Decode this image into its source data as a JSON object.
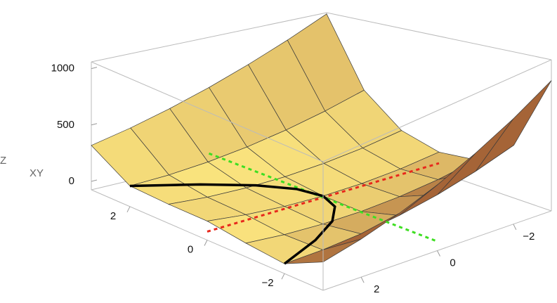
{
  "chart_data": {
    "type": "surface3d",
    "x": [
      -3,
      -2,
      -1,
      0,
      1,
      2,
      3
    ],
    "y": [
      -3,
      -2,
      -1,
      0,
      1,
      2,
      3
    ],
    "z": [
      [
        904,
        737,
        589,
        458,
        346,
        251,
        175
      ],
      [
        336,
        237,
        156,
        93,
        48,
        21,
        12
      ],
      [
        127,
        68,
        28,
        5,
        1,
        14,
        46
      ],
      [
        93,
        48,
        21,
        12,
        21,
        48,
        93
      ],
      [
        175,
        116,
        76,
        53,
        49,
        62,
        94
      ],
      [
        432,
        333,
        252,
        189,
        144,
        117,
        108
      ],
      [
        1048,
        881,
        733,
        602,
        490,
        395,
        319
      ]
    ],
    "xlim": [
      -3,
      3
    ],
    "ylim": [
      -3,
      3
    ],
    "zlim": [
      -75,
      1060
    ],
    "xticks": [
      {
        "value": -2,
        "label": "−2"
      },
      0,
      2
    ],
    "yticks": [
      {
        "value": -2,
        "label": "−2"
      },
      0,
      2
    ],
    "zticks": [
      0,
      500,
      1000
    ],
    "zlabel": "Z",
    "xylabel": "XY",
    "curve": {
      "x": [
        -2,
        -1.5,
        -1,
        -0.5,
        0,
        0.5,
        1,
        1.5,
        2
      ],
      "y": [
        3,
        1.6875,
        0.75,
        0.1875,
        0,
        0.1875,
        0.75,
        1.6875,
        3
      ],
      "z": [
        12,
        3,
        0,
        3,
        12,
        27,
        48,
        75,
        108
      ]
    }
  }
}
